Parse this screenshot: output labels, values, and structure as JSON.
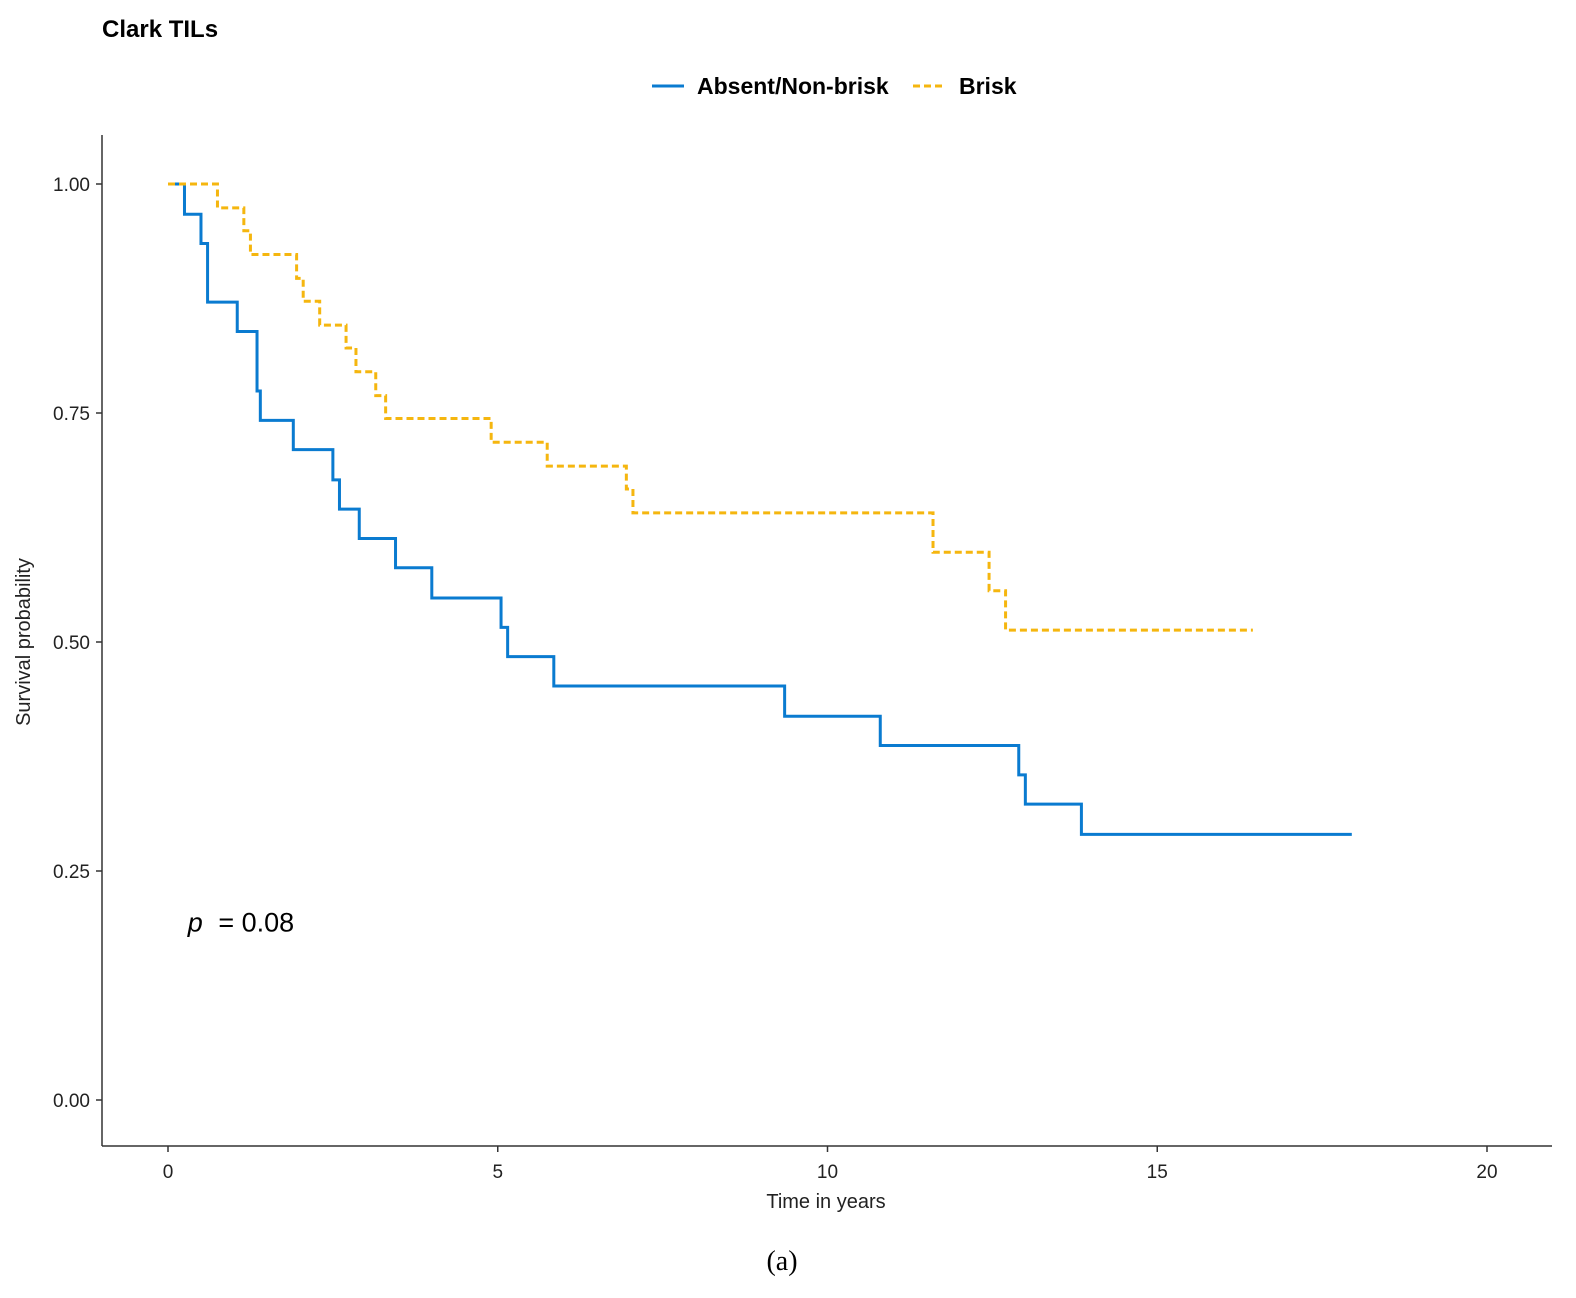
{
  "chart_data": {
    "type": "line",
    "subtype": "kaplan-meier step",
    "title": "Clark TILs",
    "xlabel": "Time in years",
    "ylabel": "Survival probability",
    "xlim": [
      -1,
      20.5
    ],
    "ylim": [
      -0.05,
      1.05
    ],
    "xticks": [
      0,
      5,
      10,
      15,
      20
    ],
    "yticks": [
      0.0,
      0.25,
      0.5,
      0.75,
      1.0
    ],
    "xtick_labels": [
      "0",
      "5",
      "10",
      "15",
      "20"
    ],
    "ytick_labels": [
      "0.00",
      "0.25",
      "0.50",
      "0.75",
      "1.00"
    ],
    "grid": false,
    "legend_position": "top",
    "annotation": {
      "p_label": "p",
      "p_value_text": "= 0.08",
      "x": 0.3,
      "y": 0.195
    },
    "caption": "(a)",
    "series": [
      {
        "name": "Absent/Non-brisk",
        "color": "#0a7bd0",
        "dash": "solid",
        "x": [
          0,
          0.25,
          0.5,
          0.6,
          1.05,
          1.35,
          1.4,
          1.9,
          2.5,
          2.6,
          2.9,
          3.45,
          4.0,
          5.05,
          5.15,
          5.85,
          9.35,
          10.8,
          12.9,
          13.0,
          13.85,
          17.95
        ],
        "y": [
          1.0,
          0.967,
          0.935,
          0.871,
          0.839,
          0.774,
          0.742,
          0.71,
          0.677,
          0.645,
          0.613,
          0.581,
          0.548,
          0.516,
          0.484,
          0.452,
          0.419,
          0.387,
          0.355,
          0.323,
          0.29,
          0.29
        ]
      },
      {
        "name": "Brisk",
        "color": "#f5b60f",
        "dash": "dashed",
        "x": [
          0,
          0.75,
          1.15,
          1.25,
          1.95,
          2.05,
          2.3,
          2.7,
          2.85,
          3.15,
          3.3,
          4.9,
          5.75,
          6.95,
          7.05,
          11.6,
          12.45,
          12.7,
          16.45
        ],
        "y": [
          1.0,
          0.974,
          0.949,
          0.923,
          0.897,
          0.872,
          0.846,
          0.821,
          0.795,
          0.769,
          0.744,
          0.718,
          0.692,
          0.667,
          0.641,
          0.598,
          0.556,
          0.513,
          0.513
        ]
      }
    ]
  }
}
